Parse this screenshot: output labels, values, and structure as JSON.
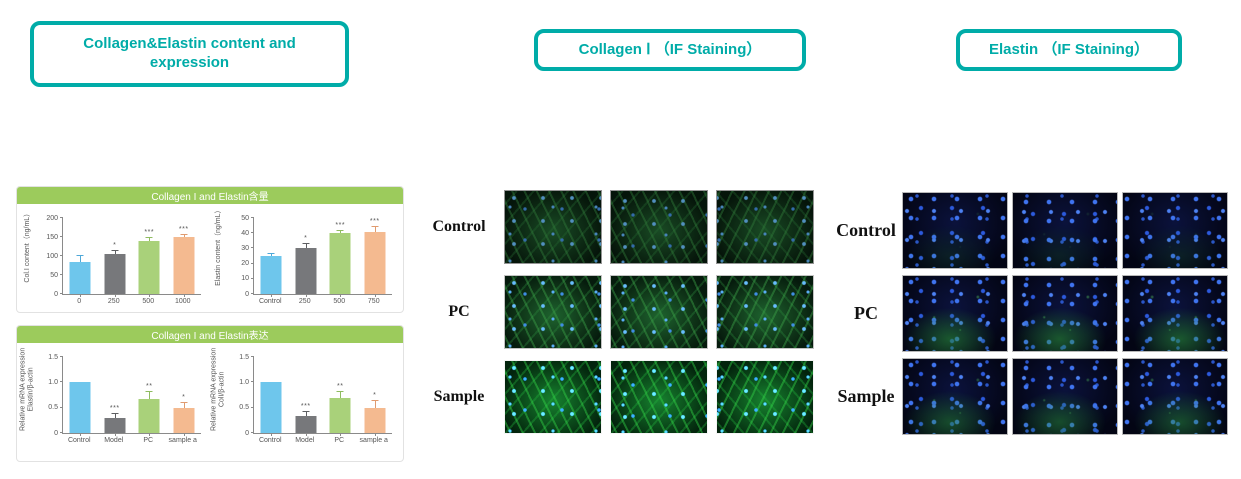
{
  "headers": [
    {
      "label": "Collagen&Elastin content and\nexpression"
    },
    {
      "label": "Collagen Ⅰ （IF Staining）"
    },
    {
      "label": "Elastin （IF Staining）"
    }
  ],
  "panels": [
    {
      "title": "Collagen I and Elastin含量"
    },
    {
      "title": "Collagen I and Elastin表达"
    }
  ],
  "chart": {
    "bar_colors": [
      "#6EC6EC",
      "#77787B",
      "#A9D17A",
      "#F4BA90"
    ],
    "err_colors": [
      "#4FA8D8",
      "#5E5F62",
      "#8FBC60",
      "#E09B6F"
    ],
    "axis_color": "#8a8a8a"
  },
  "chart_data": [
    {
      "type": "bar",
      "ylabel": "Col.I content（ng/mL）",
      "ylim": [
        0,
        200
      ],
      "yticks": [
        "0",
        "50",
        "100",
        "150",
        "200"
      ],
      "categories": [
        "0",
        "250",
        "500",
        "1000"
      ],
      "values": [
        85,
        104,
        140,
        149
      ],
      "errors": [
        14,
        8,
        7,
        6
      ],
      "sig": [
        "",
        "*",
        "***",
        "***"
      ]
    },
    {
      "type": "bar",
      "ylabel": "Elastin content（ng/mL）",
      "ylim": [
        0,
        50
      ],
      "yticks": [
        "0",
        "10",
        "20",
        "30",
        "40",
        "50"
      ],
      "categories": [
        "Control",
        "250",
        "500",
        "750"
      ],
      "values": [
        25,
        30,
        40,
        41
      ],
      "errors": [
        1.5,
        3,
        1.5,
        3
      ],
      "sig": [
        "",
        "*",
        "***",
        "***"
      ]
    },
    {
      "type": "bar",
      "ylabel": "Relative mRNA expression\nElastin/β-actin",
      "ylim": [
        0,
        1.5
      ],
      "yticks": [
        "0",
        "0.5",
        "1.0",
        "1.5"
      ],
      "categories": [
        "Control",
        "Model",
        "PC",
        "sample a"
      ],
      "values": [
        1.0,
        0.3,
        0.68,
        0.5
      ],
      "errors": [
        0,
        0.08,
        0.12,
        0.1
      ],
      "sig": [
        "",
        "***",
        "**",
        "*"
      ]
    },
    {
      "type": "bar",
      "ylabel": "Relative mRNA expression\nColI/β-actin",
      "ylim": [
        0,
        1.5
      ],
      "yticks": [
        "0",
        "0.5",
        "1.0",
        "1.5"
      ],
      "categories": [
        "Control",
        "Model",
        "PC",
        "sample a"
      ],
      "values": [
        1.0,
        0.34,
        0.7,
        0.5
      ],
      "errors": [
        0,
        0.08,
        0.1,
        0.13
      ],
      "sig": [
        "",
        "***",
        "**",
        "*"
      ]
    }
  ],
  "if_sections": [
    {
      "rows": [
        {
          "label": "Control"
        },
        {
          "label": "PC"
        },
        {
          "label": "Sample"
        }
      ]
    },
    {
      "rows": [
        {
          "label": "Control"
        },
        {
          "label": "PC"
        },
        {
          "label": "Sample"
        }
      ]
    }
  ],
  "colors": {
    "teal": "#00ACA8",
    "banner_green": "#9CCB5C"
  }
}
